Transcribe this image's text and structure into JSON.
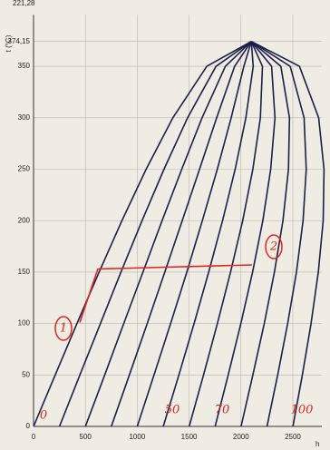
{
  "chart_data": {
    "type": "line",
    "header_text": "221,28",
    "y_label": "t (°C)",
    "x_label": "h",
    "xlim": [
      0,
      2780
    ],
    "ylim": [
      0,
      400
    ],
    "xticks": [
      0,
      500,
      1000,
      1500,
      2000,
      2500
    ],
    "yticks": [
      0,
      50,
      100,
      150,
      200,
      250,
      300,
      350,
      {
        "value": 374.15,
        "label": "374,15"
      }
    ],
    "grid": true,
    "series": [
      {
        "color": "#1c1f4a",
        "x": [
          0,
          209,
          419,
          632,
          852,
          1086,
          1344,
          1671,
          2100
        ],
        "values": [
          0,
          50,
          100,
          150,
          200,
          250,
          300,
          350,
          374.15
        ]
      },
      {
        "color": "#1c1f4a",
        "x": [
          250,
          447,
          645,
          843,
          1046,
          1258,
          1485,
          1760,
          2100
        ],
        "values": [
          0,
          50,
          100,
          150,
          200,
          250,
          300,
          350,
          374.15
        ]
      },
      {
        "color": "#1c1f4a",
        "x": [
          500,
          686,
          870,
          1055,
          1240,
          1429,
          1625,
          1850,
          2100
        ],
        "values": [
          0,
          50,
          100,
          150,
          200,
          250,
          300,
          350,
          374.15
        ]
      },
      {
        "color": "#1c1f4a",
        "x": [
          750,
          924,
          1096,
          1266,
          1434,
          1601,
          1766,
          1939,
          2100
        ],
        "values": [
          0,
          50,
          100,
          150,
          200,
          250,
          300,
          350,
          374.15
        ]
      },
      {
        "color": "#1c1f4a",
        "x": [
          1000,
          1162,
          1322,
          1478,
          1628,
          1772,
          1906,
          2028,
          2100
        ],
        "values": [
          0,
          50,
          100,
          150,
          200,
          250,
          300,
          350,
          374.15
        ]
      },
      {
        "color": "#1c1f4a",
        "x": [
          1251,
          1401,
          1548,
          1689,
          1823,
          1944,
          2047,
          2118,
          2100
        ],
        "values": [
          0,
          50,
          100,
          150,
          200,
          250,
          300,
          350,
          374.15
        ]
      },
      {
        "color": "#1c1f4a",
        "x": [
          1501,
          1639,
          1773,
          1900,
          2017,
          2115,
          2187,
          2207,
          2100
        ],
        "values": [
          0,
          50,
          100,
          150,
          200,
          250,
          300,
          350,
          374.15
        ]
      },
      {
        "color": "#1c1f4a",
        "x": [
          1751,
          1877,
          1999,
          2112,
          2211,
          2287,
          2328,
          2296,
          2100
        ],
        "values": [
          0,
          50,
          100,
          150,
          200,
          250,
          300,
          350,
          374.15
        ]
      },
      {
        "color": "#1c1f4a",
        "x": [
          2001,
          2115,
          2225,
          2323,
          2405,
          2458,
          2468,
          2385,
          2100
        ],
        "values": [
          0,
          50,
          100,
          150,
          200,
          250,
          300,
          350,
          374.15
        ]
      },
      {
        "color": "#1c1f4a",
        "x": [
          2251,
          2354,
          2450,
          2535,
          2599,
          2630,
          2609,
          2475,
          2100
        ],
        "values": [
          0,
          50,
          100,
          150,
          200,
          250,
          300,
          350,
          374.15
        ]
      },
      {
        "color": "#1c1f4a",
        "x": [
          2501,
          2592,
          2676,
          2746,
          2793,
          2801,
          2749,
          2564,
          2100
        ],
        "values": [
          0,
          50,
          100,
          150,
          200,
          250,
          300,
          350,
          374.15
        ]
      },
      {
        "color": "#e0261e",
        "x": [
          446,
          620,
          2107
        ],
        "values": [
          101,
          153,
          157
        ]
      }
    ],
    "annotations": [
      "1",
      "2",
      "0",
      "50",
      "70",
      "100"
    ]
  }
}
